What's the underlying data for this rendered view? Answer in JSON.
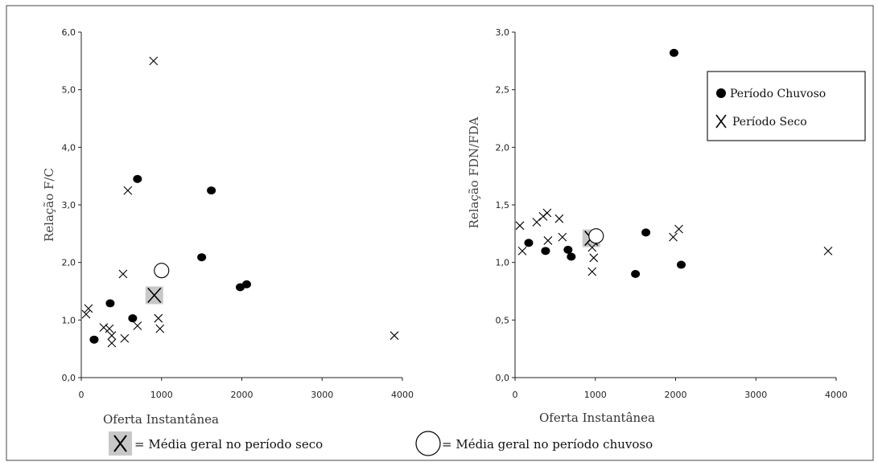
{
  "chart_data": [
    {
      "type": "scatter",
      "xlabel": "Oferta Instantânea",
      "ylabel": "Relação F/C",
      "xlim": [
        0,
        4000
      ],
      "ylim": [
        0,
        6
      ],
      "xticks": [
        "0",
        "1000",
        "2000",
        "3000",
        "4000"
      ],
      "yticks": [
        "0,0",
        "1,0",
        "2,0",
        "3,0",
        "4,0",
        "5,0",
        "6,0"
      ],
      "series": [
        {
          "name": "Período Chuvoso",
          "marker": "filled-circle",
          "points": [
            [
              160,
              0.66
            ],
            [
              360,
              1.29
            ],
            [
              640,
              1.03
            ],
            [
              700,
              3.45
            ],
            [
              1500,
              2.09
            ],
            [
              1620,
              3.25
            ],
            [
              1980,
              1.57
            ],
            [
              2060,
              1.62
            ]
          ]
        },
        {
          "name": "Período Seco",
          "marker": "x",
          "points": [
            [
              60,
              1.1
            ],
            [
              90,
              1.2
            ],
            [
              280,
              0.87
            ],
            [
              350,
              0.85
            ],
            [
              380,
              0.73
            ],
            [
              380,
              0.6
            ],
            [
              520,
              1.8
            ],
            [
              540,
              0.68
            ],
            [
              580,
              3.25
            ],
            [
              700,
              0.9
            ],
            [
              900,
              5.5
            ],
            [
              960,
              1.03
            ],
            [
              980,
              0.85
            ],
            [
              3900,
              0.73
            ]
          ]
        }
      ],
      "overall_means": {
        "seco": [
          910,
          1.43
        ],
        "chuvoso": [
          1000,
          1.86
        ]
      }
    },
    {
      "type": "scatter",
      "xlabel": "Oferta Instantânea",
      "ylabel": "Relação FDN/FDA",
      "xlim": [
        0,
        4000
      ],
      "ylim": [
        0,
        3
      ],
      "xticks": [
        "0",
        "1000",
        "2000",
        "3000",
        "4000"
      ],
      "yticks": [
        "0,0",
        "0,5",
        "1,0",
        "1,5",
        "2,0",
        "2,5",
        "3,0"
      ],
      "legend_position": "top-right",
      "series": [
        {
          "name": "Período Chuvoso",
          "marker": "filled-circle",
          "points": [
            [
              170,
              1.17
            ],
            [
              380,
              1.1
            ],
            [
              660,
              1.11
            ],
            [
              700,
              1.05
            ],
            [
              1500,
              0.9
            ],
            [
              1630,
              1.26
            ],
            [
              1980,
              2.82
            ],
            [
              2070,
              0.98
            ]
          ]
        },
        {
          "name": "Período Seco",
          "marker": "x",
          "points": [
            [
              60,
              1.32
            ],
            [
              90,
              1.1
            ],
            [
              270,
              1.35
            ],
            [
              350,
              1.4
            ],
            [
              400,
              1.43
            ],
            [
              410,
              1.19
            ],
            [
              550,
              1.38
            ],
            [
              590,
              1.22
            ],
            [
              960,
              0.92
            ],
            [
              960,
              1.13
            ],
            [
              980,
              1.04
            ],
            [
              1970,
              1.22
            ],
            [
              2040,
              1.29
            ],
            [
              3900,
              1.1
            ]
          ]
        }
      ],
      "overall_means": {
        "seco": [
          950,
          1.21
        ],
        "chuvoso": [
          1010,
          1.23
        ]
      }
    }
  ],
  "legend": {
    "chuvoso_label": "Período Chuvoso",
    "seco_label": "Período Seco"
  },
  "footer": {
    "seco_mean_label": "= Média geral no período seco",
    "chuvoso_mean_label": "= Média geral no período chuvoso"
  },
  "colors": {
    "marker": "#000000",
    "mean_box": "#c8c8c8",
    "axis": "#222222",
    "frame": "#444444"
  }
}
